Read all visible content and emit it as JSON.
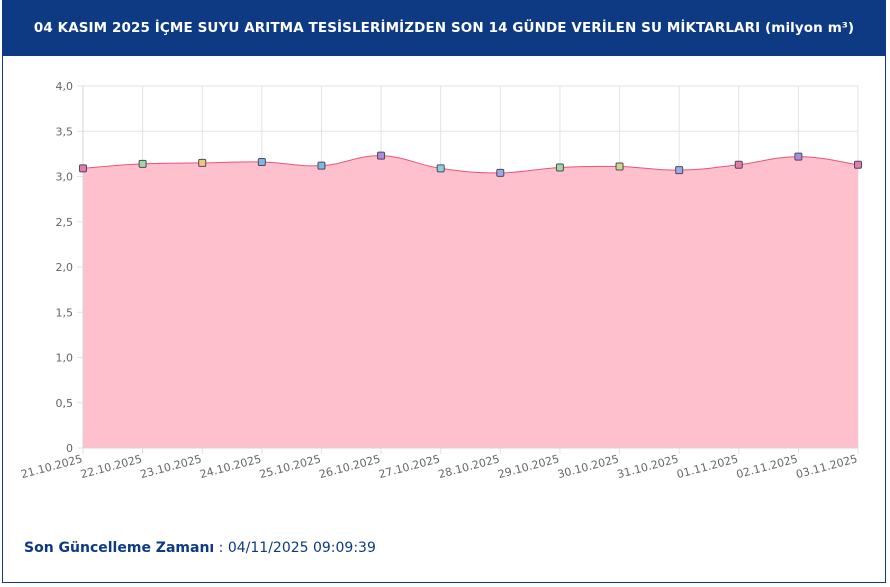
{
  "header": {
    "title": "04 KASIM 2025 İÇME SUYU ARITMA TESİSLERİMİZDEN SON 14 GÜNDE VERİLEN SU MİKTARLARI (milyon m³)"
  },
  "footer": {
    "label": "Son Güncelleme Zamanı",
    "separator": " : ",
    "value": "04/11/2025 09:09:39"
  },
  "colors": {
    "header_bg": "#0d3a82",
    "area_fill": "#ffc0cd",
    "line": "#e8557a"
  },
  "chart_data": {
    "type": "area",
    "categories": [
      "21.10.2025",
      "22.10.2025",
      "23.10.2025",
      "24.10.2025",
      "25.10.2025",
      "26.10.2025",
      "27.10.2025",
      "28.10.2025",
      "29.10.2025",
      "30.10.2025",
      "31.10.2025",
      "01.11.2025",
      "02.11.2025",
      "03.11.2025"
    ],
    "values": [
      3.09,
      3.14,
      3.15,
      3.16,
      3.12,
      3.23,
      3.09,
      3.04,
      3.1,
      3.11,
      3.07,
      3.13,
      3.22,
      3.13
    ],
    "point_colors": [
      "#e57ba6",
      "#9fd8a0",
      "#f3c77b",
      "#7fb8e8",
      "#7fb8e8",
      "#a98ce0",
      "#8fd0e0",
      "#a0a6e8",
      "#9fd8a0",
      "#cfd88a",
      "#a0a6e8",
      "#e57ba6",
      "#a98ce0",
      "#e57ba6"
    ],
    "yticks": [
      "0",
      "0,5",
      "1,0",
      "1,5",
      "2,0",
      "2,5",
      "3,0",
      "3,5",
      "4,0"
    ],
    "ylim": [
      0,
      4
    ],
    "grid": true,
    "legend": "none"
  }
}
